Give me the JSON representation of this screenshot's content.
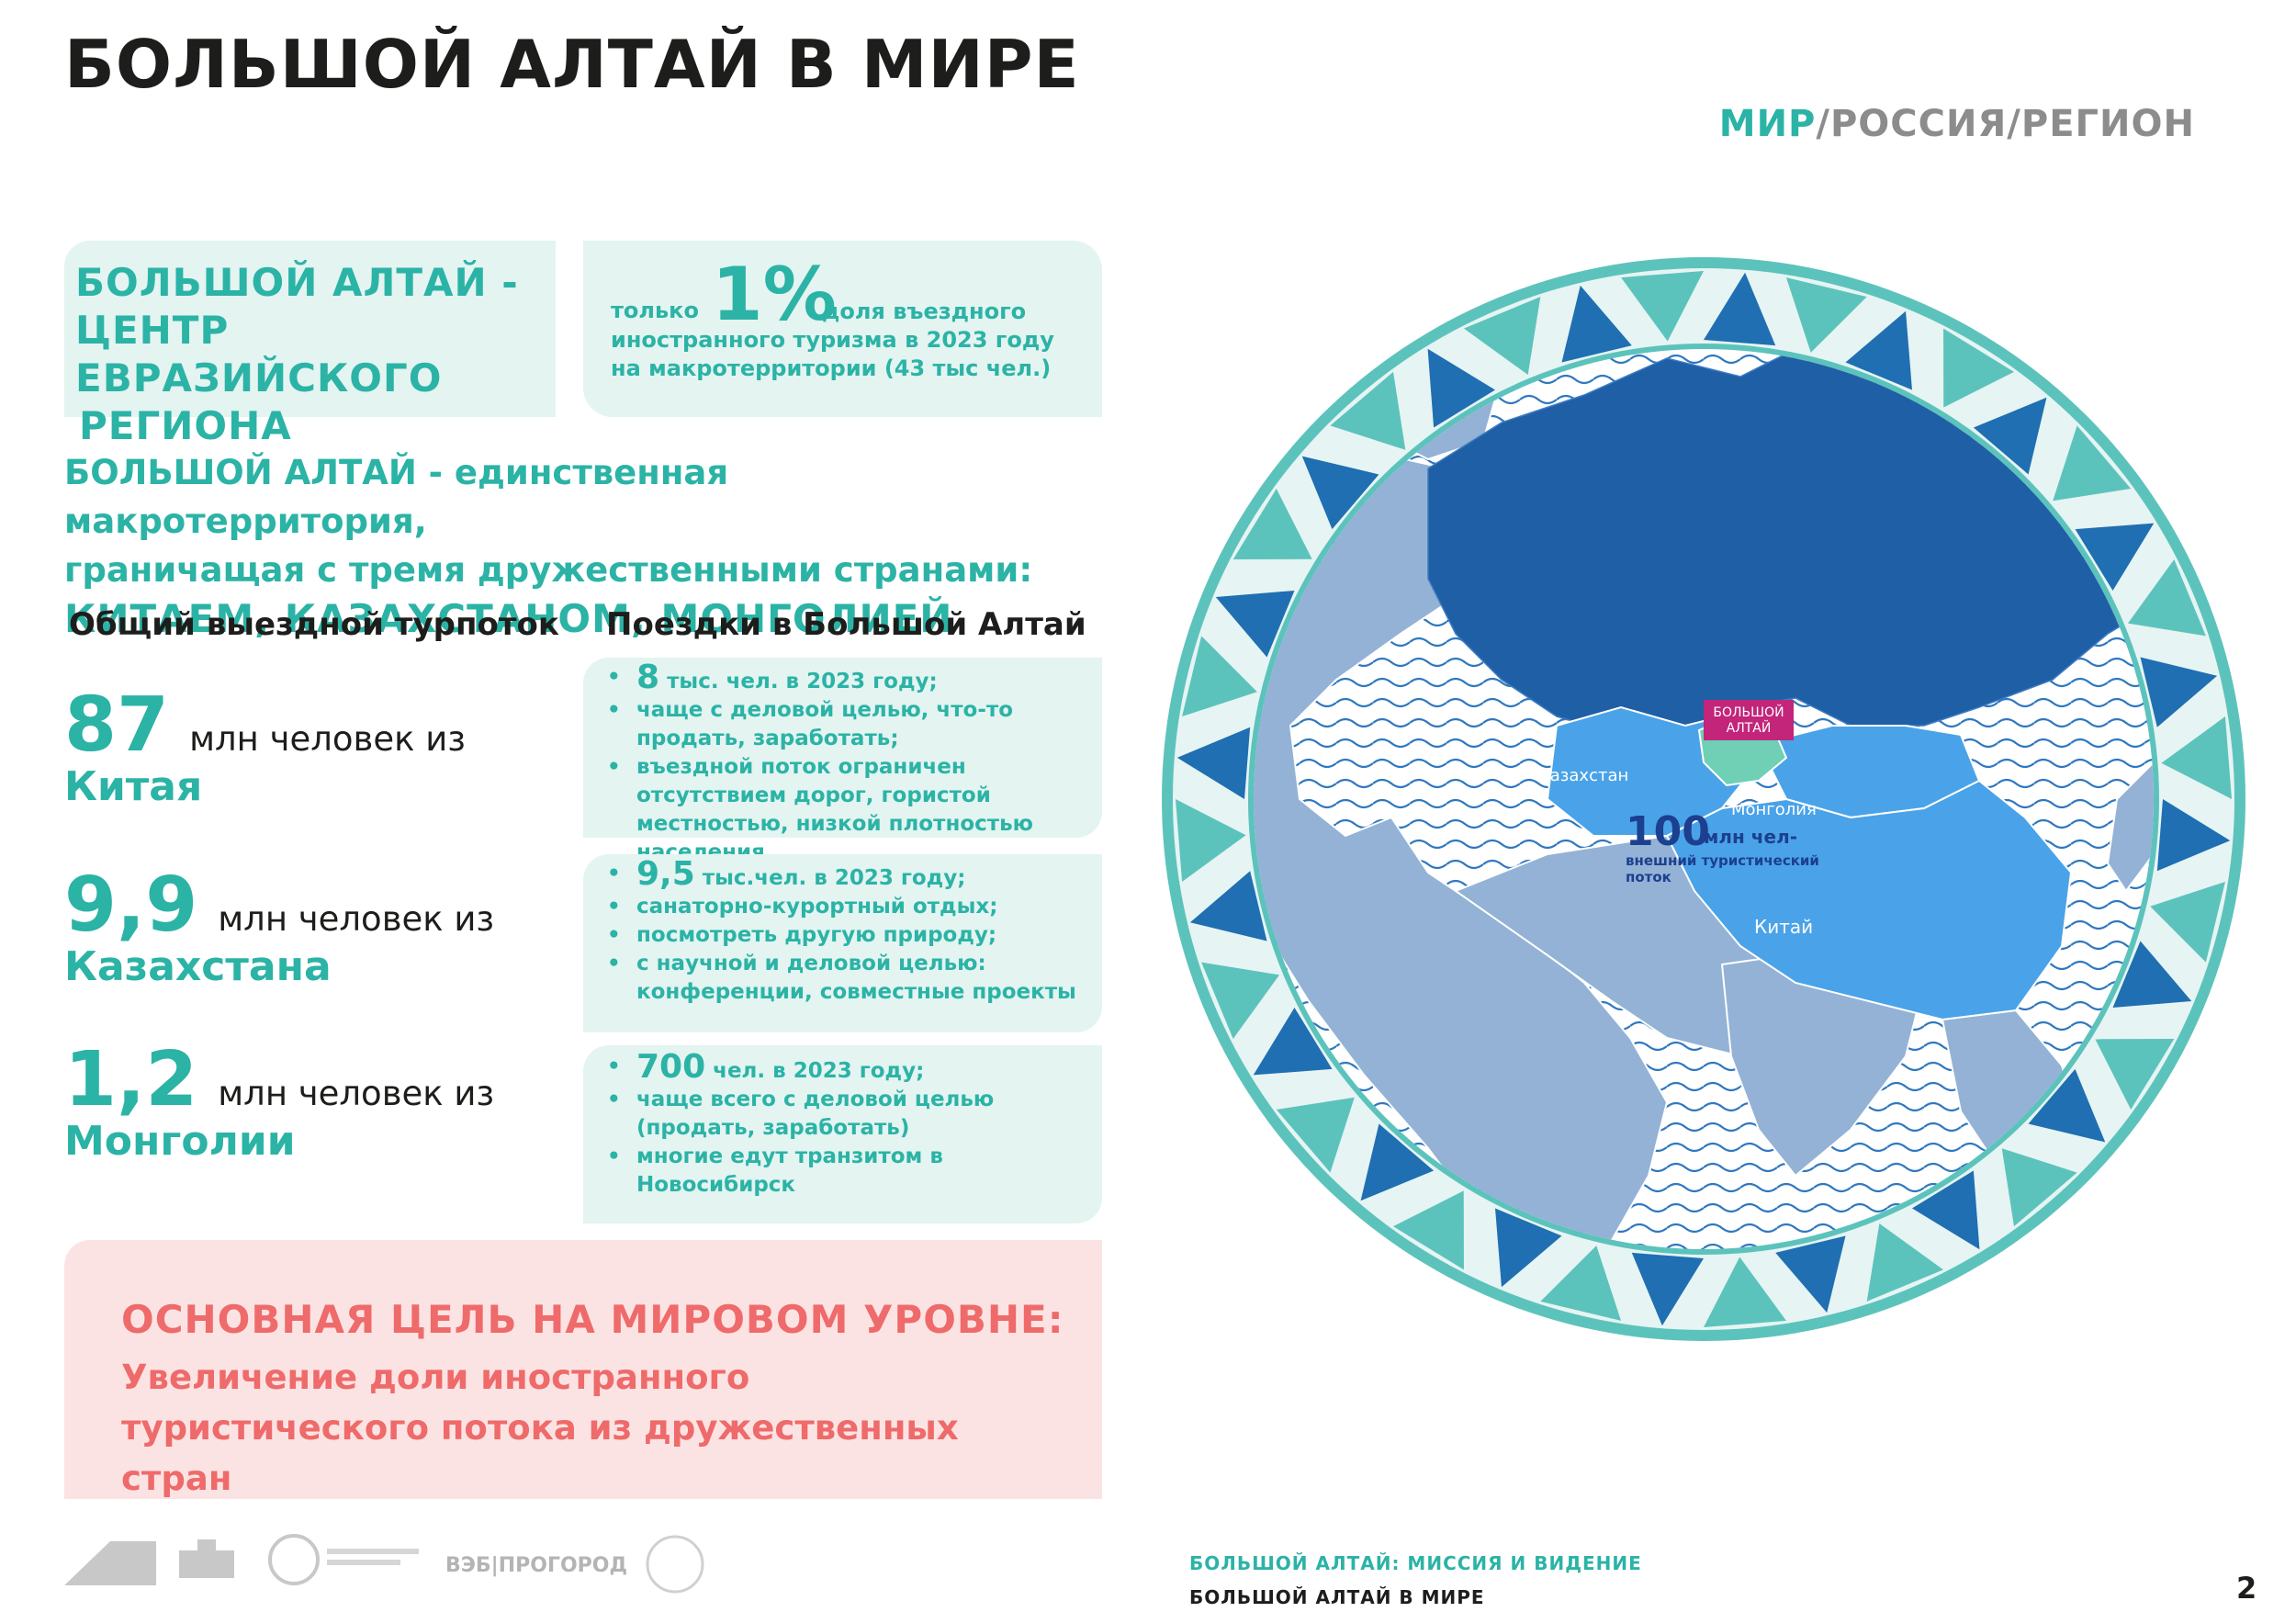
{
  "header": {
    "title": "БОЛЬШОЙ АЛТАЙ В МИРЕ",
    "crumb_active": "МИР",
    "crumb_rest": "/РОССИЯ/РЕГИОН"
  },
  "top": {
    "center_line1": "БОЛЬШОЙ АЛТАЙ -",
    "center_line2": "ЦЕНТР ЕВРАЗИЙСКОГО",
    "center_line3": "РЕГИОНА",
    "share_only": "только",
    "share_value": "1%",
    "share_text": "доля въездного иностранного туризма в 2023 году на макротерритории (43 тыс чел.)"
  },
  "unique": {
    "line1": "БОЛЬШОЙ АЛТАЙ - единственная макротерритория,",
    "line2": "граничащая с тремя дружественными странами:",
    "line3": "КИТАЕМ, КАЗАХСТАНОМ, МОНГОЛИЕЙ"
  },
  "columns": {
    "left": "Общий выездной турпоток",
    "right": "Поездки в Большой Алтай"
  },
  "stats": [
    {
      "value": "87",
      "unit": "млн человек из",
      "country": "Китая"
    },
    {
      "value": "9,9",
      "unit": "млн человек из",
      "country": "Казахстана"
    },
    {
      "value": "1,2",
      "unit": "млн человек из",
      "country": "Монголии"
    }
  ],
  "trips": [
    {
      "lead_num": "8",
      "lead_text": " тыс. чел. в 2023 году;",
      "items": [
        "чаще с деловой целью, что-то продать, заработать;",
        "въездной поток ограничен отсутствием дорог, гористой местностью, низкой плотностью населения"
      ]
    },
    {
      "lead_num": "9,5",
      "lead_text": " тыс.чел. в 2023 году;",
      "items": [
        "санаторно-курортный отдых;",
        "посмотреть другую природу;",
        "с научной и деловой целью: конференции, совместные проекты"
      ]
    },
    {
      "lead_num": "700",
      "lead_text": " чел. в 2023 году;",
      "items": [
        "чаще всего с деловой целью (продать, заработать)",
        "многие едут транзитом в Новосибирск"
      ]
    }
  ],
  "goal": {
    "heading": "ОСНОВНАЯ ЦЕЛЬ НА МИРОВОМ УРОВНЕ:",
    "text": "Увеличение доли иностранного туристического потока из дружественных стран"
  },
  "map": {
    "altai_line1": "БОЛЬШОЙ",
    "altai_line2": "АЛТАЙ",
    "kazakhstan": "Казахстан",
    "mongolia": "Монголия",
    "china": "Китай",
    "flow_value": "100",
    "flow_unit": "млн чел-",
    "flow_line2": "внешний туристический",
    "flow_line3": "поток",
    "colors": {
      "ring_dark": "#1f6fb2",
      "ring_teal": "#5cc3bc",
      "russia": "#1f5fa6",
      "neighbors": "#4aa3e8",
      "altai_badge": "#c2257a",
      "land": "#93b2d6"
    }
  },
  "footer": {
    "logo_veb": "ВЭБ|ПРОГОРОД",
    "line1": "БОЛЬШОЙ АЛТАЙ: МИССИЯ И ВИДЕНИЕ",
    "line2": "БОЛЬШОЙ АЛТАЙ В МИРЕ",
    "page": "2"
  }
}
